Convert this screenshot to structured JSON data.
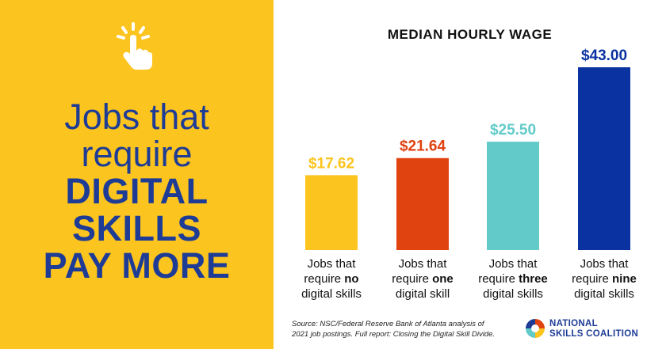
{
  "headline": {
    "line1": "Jobs that",
    "line2": "require",
    "line3": "DIGITAL",
    "line4": "SKILLS",
    "line5": "PAY MORE"
  },
  "icon": "pointing-hand-click-icon",
  "colors": {
    "left_background": "#fbc41e",
    "headline": "#1e3c96",
    "bar_no": "#fbc41e",
    "bar_one": "#e04210",
    "bar_three": "#62cbc9",
    "bar_nine": "#0a32a0"
  },
  "chart_data": {
    "type": "bar",
    "title": "MEDIAN HOURLY WAGE",
    "categories": [
      "Jobs that require no digital skills",
      "Jobs that require one digital skill",
      "Jobs that require three digital skills",
      "Jobs that require nine digital skills"
    ],
    "category_lines": [
      {
        "l1": "Jobs that",
        "l2a": "require ",
        "l2b": "no",
        "l3": "digital skills"
      },
      {
        "l1": "Jobs that",
        "l2a": "require ",
        "l2b": "one",
        "l3": "digital skill"
      },
      {
        "l1": "Jobs that",
        "l2a": "require ",
        "l2b": "three",
        "l3": "digital skills"
      },
      {
        "l1": "Jobs that",
        "l2a": "require ",
        "l2b": "nine",
        "l3": "digital skills"
      }
    ],
    "values": [
      17.62,
      21.64,
      25.5,
      43.0
    ],
    "value_labels": [
      "$17.62",
      "$21.64",
      "$25.50",
      "$43.00"
    ],
    "ylim": [
      0,
      43
    ],
    "grid": false,
    "legend": "none"
  },
  "source": {
    "line1": "Source: NSC/Federal Reserve Bank of Atlanta analysis of",
    "line2": "2021 job postings. Full report: Closing the Digital Skill Divide."
  },
  "logo": {
    "line1": "NATIONAL",
    "line2": "SKILLS COALITION"
  }
}
